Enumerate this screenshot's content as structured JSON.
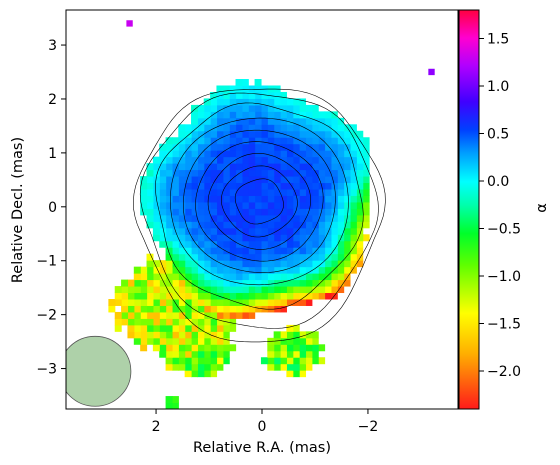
{
  "chart_data": {
    "type": "heatmap",
    "title": "",
    "xlabel": "Relative R.A. (mas)",
    "ylabel": "Relative Decl. (mas)",
    "colorbar_label": "α",
    "x_axis_inverted": true,
    "xlim": [
      3.7,
      -3.7
    ],
    "ylim": [
      -3.75,
      3.65
    ],
    "x_ticks": [
      {
        "value": 2,
        "label": "2"
      },
      {
        "value": 0,
        "label": "0"
      },
      {
        "value": -2,
        "label": "−2"
      }
    ],
    "y_ticks": [
      {
        "value": 3,
        "label": "3"
      },
      {
        "value": 2,
        "label": "2"
      },
      {
        "value": 1,
        "label": "1"
      },
      {
        "value": 0,
        "label": "0"
      },
      {
        "value": -1,
        "label": "−1"
      },
      {
        "value": -2,
        "label": "−2"
      },
      {
        "value": -3,
        "label": "−3"
      }
    ],
    "colorbar": {
      "range": [
        -2.4,
        1.8
      ],
      "ticks": [
        {
          "value": 1.5,
          "label": "1.5"
        },
        {
          "value": 1.0,
          "label": "1.0"
        },
        {
          "value": 0.5,
          "label": "0.5"
        },
        {
          "value": 0.0,
          "label": "0.0"
        },
        {
          "value": -0.5,
          "label": "−0.5"
        },
        {
          "value": -1.0,
          "label": "−1.0"
        },
        {
          "value": -1.5,
          "label": "−1.5"
        },
        {
          "value": -2.0,
          "label": "−2.0"
        }
      ],
      "colormap": "gist_rainbow"
    },
    "spectral_index_map": {
      "core_center": [
        0.05,
        0.1
      ],
      "core_radius": 2.15,
      "core_alpha": 0.55,
      "cell_size": 0.12,
      "tail_regions": [
        {
          "center": [
            1.6,
            -1.8
          ],
          "rx": 1.3,
          "ry": 1.0,
          "alpha": -1.2
        },
        {
          "center": [
            1.2,
            -2.6
          ],
          "rx": 0.8,
          "ry": 0.6,
          "alpha": -1.0
        },
        {
          "center": [
            -0.6,
            -2.7
          ],
          "rx": 0.6,
          "ry": 0.5,
          "alpha": -0.9
        },
        {
          "center": [
            1.7,
            -3.6
          ],
          "rx": 0.15,
          "ry": 0.15,
          "alpha": -0.4
        }
      ],
      "isolated_pixels": [
        {
          "x": 2.5,
          "y": 3.4,
          "alpha": 1.3
        },
        {
          "x": -3.2,
          "y": 2.5,
          "alpha": 1.1
        }
      ]
    },
    "contours": {
      "core_radii": [
        0.45,
        0.7,
        0.95,
        1.2,
        1.45,
        1.7,
        1.95,
        2.2,
        2.32
      ]
    },
    "beam": {
      "center": [
        3.15,
        -3.05
      ],
      "major_axis": 1.35,
      "minor_axis": 1.32,
      "color": "#93c18c"
    }
  }
}
